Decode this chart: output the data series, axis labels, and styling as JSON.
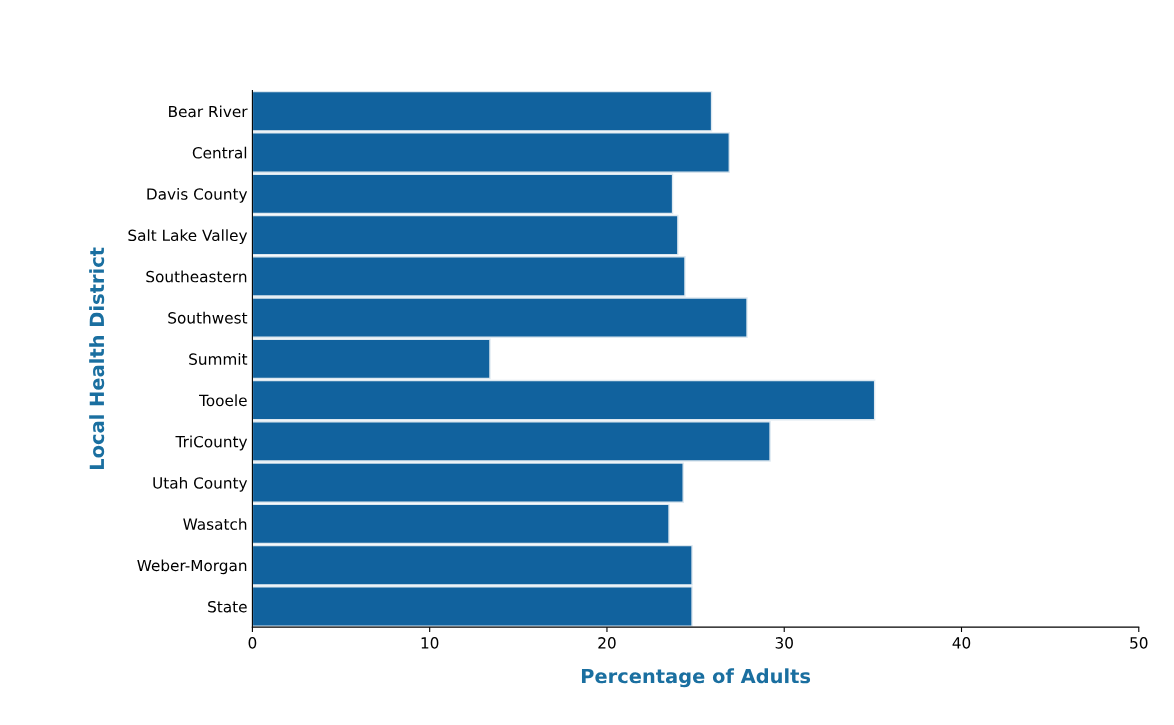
{
  "chart_data": {
    "type": "bar",
    "orientation": "horizontal",
    "categories": [
      "Bear River",
      "Central",
      "Davis County",
      "Salt Lake Valley",
      "Southeastern",
      "Southwest",
      "Summit",
      "Tooele",
      "TriCounty",
      "Utah County",
      "Wasatch",
      "Weber-Morgan",
      "State"
    ],
    "values": [
      25.9,
      26.9,
      23.7,
      24.0,
      24.4,
      27.9,
      13.4,
      35.1,
      29.2,
      24.3,
      23.5,
      24.8,
      24.8
    ],
    "color": "#11629e",
    "xlabel": "Percentage of Adults",
    "ylabel": "Local Health District",
    "xlim": [
      0,
      50
    ],
    "xticks": [
      0,
      10,
      20,
      30,
      40,
      50
    ],
    "grid": false
  }
}
